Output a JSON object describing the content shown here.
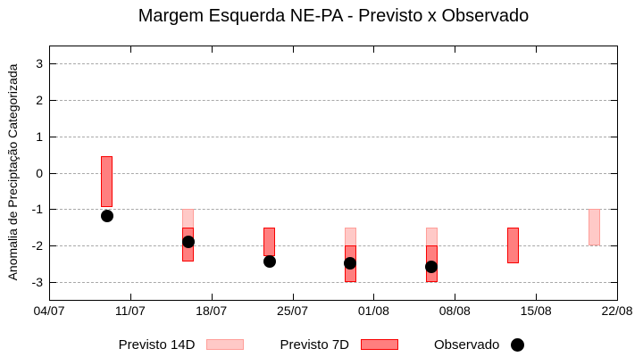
{
  "chart_data": {
    "type": "bar",
    "title": "Margem Esquerda NE-PA - Previsto x Observado",
    "ylabel": "Anomalia de Preciptação Categorizada",
    "xlabel": "",
    "grid": true,
    "ylim": [
      -3.5,
      3.5
    ],
    "yticks": [
      -3,
      -2,
      -1,
      0,
      1,
      2,
      3
    ],
    "x_axis": {
      "tick_labels": [
        "04/07",
        "11/07",
        "18/07",
        "25/07",
        "01/08",
        "08/08",
        "15/08",
        "22/08"
      ],
      "tick_days": [
        0,
        7,
        14,
        21,
        28,
        35,
        42,
        49
      ],
      "range_days": [
        0,
        49
      ]
    },
    "series": [
      {
        "name": "Previsto 14D",
        "kind": "range-bar",
        "fill": "#ffc9c7",
        "border": "#ff9e99",
        "points": [
          {
            "date": "16/07",
            "day": 12,
            "high": -1.0,
            "low": -2.45
          },
          {
            "date": "30/07",
            "day": 26,
            "high": -1.5,
            "low": -3.0
          },
          {
            "date": "06/08",
            "day": 33,
            "high": -1.5,
            "low": -3.0
          },
          {
            "date": "20/08",
            "day": 47,
            "high": -1.0,
            "low": -2.0
          }
        ]
      },
      {
        "name": "Previsto 7D",
        "kind": "range-bar",
        "fill": "#ff7f7f",
        "border": "#f80000",
        "points": [
          {
            "date": "09/07",
            "day": 5,
            "high": 0.45,
            "low": -0.95
          },
          {
            "date": "16/07",
            "day": 12,
            "high": -1.5,
            "low": -2.45
          },
          {
            "date": "23/07",
            "day": 19,
            "high": -1.5,
            "low": -2.3
          },
          {
            "date": "30/07",
            "day": 26,
            "high": -2.0,
            "low": -3.0
          },
          {
            "date": "06/08",
            "day": 33,
            "high": -2.0,
            "low": -3.0
          },
          {
            "date": "13/08",
            "day": 40,
            "high": -1.5,
            "low": -2.5
          }
        ]
      },
      {
        "name": "Observado",
        "kind": "scatter",
        "color": "#000000",
        "points": [
          {
            "date": "09/07",
            "day": 5,
            "value": -1.2
          },
          {
            "date": "16/07",
            "day": 12,
            "value": -1.9
          },
          {
            "date": "23/07",
            "day": 19,
            "value": -2.45
          },
          {
            "date": "30/07",
            "day": 26,
            "value": -2.5
          },
          {
            "date": "06/08",
            "day": 33,
            "value": -2.6
          }
        ]
      }
    ],
    "legend": {
      "position": "bottom-center",
      "items": [
        {
          "label": "Previsto 14D",
          "swatch": "bar-light"
        },
        {
          "label": "Previsto 7D",
          "swatch": "bar-dark"
        },
        {
          "label": "Observado",
          "swatch": "dot"
        }
      ]
    },
    "colors": {
      "gridline": "#a8a8a8",
      "axis_border": "#000000",
      "background": "#ffffff"
    }
  }
}
